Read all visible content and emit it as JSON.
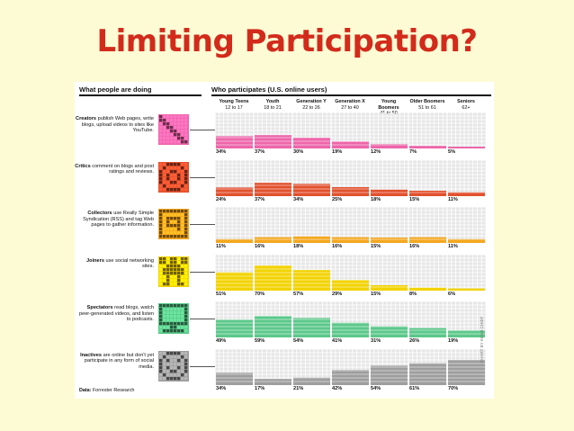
{
  "slide_title": "Limiting Participation?",
  "left_header": "What people are doing",
  "right_header": "Who participates (U.S. online users)",
  "source": "Data: Forrester Research",
  "credit": "CHART BY KENJI CHIEF",
  "colors": {
    "grid_bg": "#d9d9d9",
    "empty_cell": "#e6e6e6",
    "title": "#d22b1b"
  },
  "chart_data": {
    "type": "bar",
    "title": "Who participates (U.S. online users)",
    "categories": [
      {
        "name": "Young Teens",
        "ages": "12 to 17"
      },
      {
        "name": "Youth",
        "ages": "18 to 21"
      },
      {
        "name": "Generation Y",
        "ages": "22 to 26"
      },
      {
        "name": "Generation X",
        "ages": "27 to 40"
      },
      {
        "name": "Young Boomers",
        "ages": "41 to 50"
      },
      {
        "name": "Older Boomers",
        "ages": "51 to 61"
      },
      {
        "name": "Seniors",
        "ages": "62+"
      }
    ],
    "ylim": [
      0,
      100
    ],
    "series": [
      {
        "name": "Creators",
        "lead": "Creators",
        "desc": " publish Web pages, write blogs, upload videos to sites like YouTube.",
        "color": "#ee66aa",
        "icon": "pencil-icon",
        "values": [
          34,
          37,
          30,
          19,
          12,
          7,
          5
        ]
      },
      {
        "name": "Critics",
        "lead": "Critics",
        "desc": " comment on blogs and post ratings and reviews.",
        "color": "#e2512e",
        "icon": "speech-bubble-icon",
        "values": [
          24,
          37,
          34,
          25,
          18,
          15,
          11
        ]
      },
      {
        "name": "Collectors",
        "lead": "Collectors",
        "desc": " use Really Simple Syndication (RSS) and tag Web pages to gather information.",
        "color": "#f4a71f",
        "icon": "bookmark-icon",
        "values": [
          11,
          16,
          18,
          16,
          15,
          16,
          11
        ]
      },
      {
        "name": "Joiners",
        "lead": "Joiners",
        "desc": " use social networking sites.",
        "color": "#f2d300",
        "icon": "person-icon",
        "values": [
          51,
          70,
          57,
          29,
          15,
          8,
          6
        ]
      },
      {
        "name": "Spectators",
        "lead": "Spectators",
        "desc": " read blogs, watch peer-generated videos, and listen to podcasts.",
        "color": "#5cc88a",
        "icon": "monitor-icon",
        "values": [
          49,
          59,
          54,
          41,
          31,
          26,
          19
        ]
      },
      {
        "name": "Inactives",
        "lead": "Inactives",
        "desc": " are online but don't yet participate in any form of social media.",
        "color": "#9e9e9e",
        "icon": "face-icon",
        "values": [
          34,
          17,
          21,
          42,
          54,
          61,
          70
        ]
      }
    ]
  }
}
